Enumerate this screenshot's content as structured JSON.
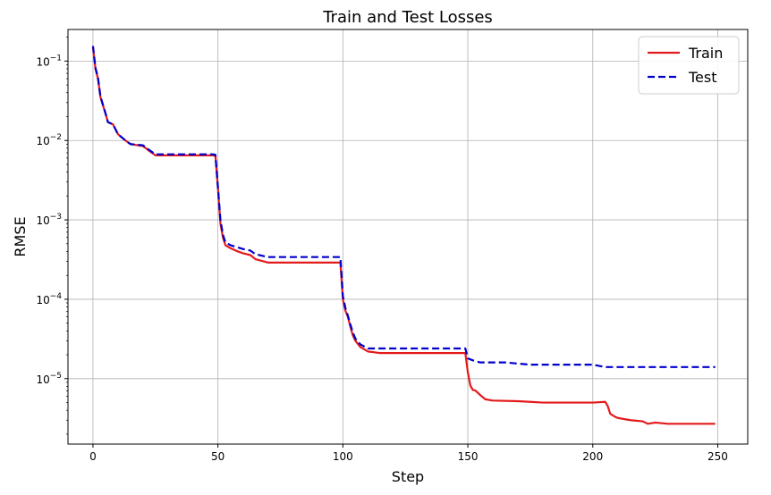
{
  "chart_data": {
    "type": "line",
    "title": "Train and Test Losses",
    "xlabel": "Step",
    "ylabel": "RMSE",
    "xlim": [
      -10,
      262
    ],
    "ylim": [
      1.5e-06,
      0.25
    ],
    "yscale": "log",
    "grid": true,
    "legend_position": "top-right",
    "x_ticks": [
      0,
      50,
      100,
      150,
      200,
      250
    ],
    "y_ticks": [
      {
        "value": 1e-05,
        "base": "10",
        "exp": "−5"
      },
      {
        "value": 0.0001,
        "base": "10",
        "exp": "−4"
      },
      {
        "value": 0.001,
        "base": "10",
        "exp": "−3"
      },
      {
        "value": 0.01,
        "base": "10",
        "exp": "−2"
      },
      {
        "value": 0.1,
        "base": "10",
        "exp": "−1"
      }
    ],
    "series": [
      {
        "name": "Train",
        "color": "#e31a1c",
        "style": "solid",
        "points": [
          [
            0,
            0.15
          ],
          [
            1,
            0.08
          ],
          [
            2,
            0.06
          ],
          [
            3,
            0.035
          ],
          [
            5,
            0.022
          ],
          [
            6,
            0.017
          ],
          [
            8,
            0.016
          ],
          [
            10,
            0.012
          ],
          [
            13,
            0.01
          ],
          [
            15,
            0.009
          ],
          [
            20,
            0.0085
          ],
          [
            23,
            0.0072
          ],
          [
            25,
            0.0065
          ],
          [
            48,
            0.0065
          ],
          [
            49,
            0.0064
          ],
          [
            50,
            0.0025
          ],
          [
            51,
            0.0009
          ],
          [
            52,
            0.0006
          ],
          [
            53,
            0.00048
          ],
          [
            55,
            0.00044
          ],
          [
            58,
            0.0004
          ],
          [
            60,
            0.00038
          ],
          [
            63,
            0.00036
          ],
          [
            65,
            0.00032
          ],
          [
            70,
            0.00029
          ],
          [
            99,
            0.00029
          ],
          [
            100,
            0.0001
          ],
          [
            101,
            7.2e-05
          ],
          [
            102,
            6e-05
          ],
          [
            103,
            4.5e-05
          ],
          [
            104,
            3.5e-05
          ],
          [
            105,
            3e-05
          ],
          [
            107,
            2.5e-05
          ],
          [
            110,
            2.2e-05
          ],
          [
            115,
            2.1e-05
          ],
          [
            149,
            2.1e-05
          ],
          [
            150,
            1.2e-05
          ],
          [
            151,
            8.2e-06
          ],
          [
            152,
            7.2e-06
          ],
          [
            153,
            7.1e-06
          ],
          [
            155,
            6.2e-06
          ],
          [
            157,
            5.5e-06
          ],
          [
            160,
            5.3e-06
          ],
          [
            170,
            5.2e-06
          ],
          [
            175,
            5.1e-06
          ],
          [
            180,
            5e-06
          ],
          [
            200,
            5e-06
          ],
          [
            205,
            5.1e-06
          ],
          [
            206,
            4.5e-06
          ],
          [
            207,
            3.6e-06
          ],
          [
            209,
            3.3e-06
          ],
          [
            210,
            3.2e-06
          ],
          [
            215,
            3e-06
          ],
          [
            220,
            2.9e-06
          ],
          [
            222,
            2.7e-06
          ],
          [
            225,
            2.8e-06
          ],
          [
            230,
            2.7e-06
          ],
          [
            249,
            2.7e-06
          ]
        ]
      },
      {
        "name": "Test",
        "color": "#0000cc",
        "style": "dashed",
        "points": [
          [
            0,
            0.155
          ],
          [
            1,
            0.082
          ],
          [
            2,
            0.062
          ],
          [
            3,
            0.036
          ],
          [
            5,
            0.022
          ],
          [
            6,
            0.017
          ],
          [
            8,
            0.016
          ],
          [
            10,
            0.012
          ],
          [
            13,
            0.01
          ],
          [
            15,
            0.009
          ],
          [
            20,
            0.0087
          ],
          [
            23,
            0.0074
          ],
          [
            25,
            0.0067
          ],
          [
            48,
            0.0067
          ],
          [
            49,
            0.0066
          ],
          [
            50,
            0.0026
          ],
          [
            51,
            0.001
          ],
          [
            52,
            0.00065
          ],
          [
            53,
            0.00052
          ],
          [
            55,
            0.00048
          ],
          [
            58,
            0.00045
          ],
          [
            60,
            0.00043
          ],
          [
            63,
            0.00041
          ],
          [
            65,
            0.00037
          ],
          [
            70,
            0.00034
          ],
          [
            99,
            0.00034
          ],
          [
            100,
            0.00011
          ],
          [
            101,
            7.8e-05
          ],
          [
            102,
            6.2e-05
          ],
          [
            103,
            4.8e-05
          ],
          [
            104,
            3.8e-05
          ],
          [
            105,
            3.2e-05
          ],
          [
            107,
            2.7e-05
          ],
          [
            110,
            2.4e-05
          ],
          [
            115,
            2.4e-05
          ],
          [
            149,
            2.4e-05
          ],
          [
            150,
            1.8e-05
          ],
          [
            152,
            1.7e-05
          ],
          [
            155,
            1.6e-05
          ],
          [
            165,
            1.6e-05
          ],
          [
            175,
            1.5e-05
          ],
          [
            200,
            1.5e-05
          ],
          [
            205,
            1.4e-05
          ],
          [
            220,
            1.4e-05
          ],
          [
            249,
            1.4e-05
          ]
        ]
      }
    ]
  }
}
